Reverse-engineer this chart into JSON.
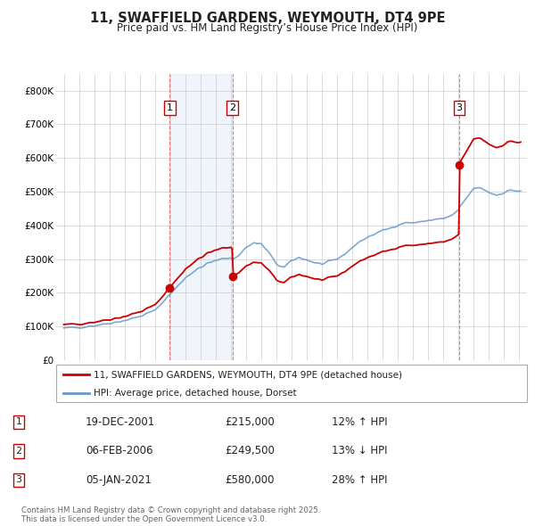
{
  "title": "11, SWAFFIELD GARDENS, WEYMOUTH, DT4 9PE",
  "subtitle": "Price paid vs. HM Land Registry’s House Price Index (HPI)",
  "legend_line1": "11, SWAFFIELD GARDENS, WEYMOUTH, DT4 9PE (detached house)",
  "legend_line2": "HPI: Average price, detached house, Dorset",
  "footnote": "Contains HM Land Registry data © Crown copyright and database right 2025.\nThis data is licensed under the Open Government Licence v3.0.",
  "sale_color": "#cc0000",
  "hpi_color": "#6699cc",
  "shade_color": "#ddeeff",
  "background_color": "#ffffff",
  "plot_bg": "#ffffff",
  "grid_color": "#cccccc",
  "purchases": [
    {
      "label": "1",
      "date": "19-DEC-2001",
      "price": 215000,
      "x": 2001.97,
      "hpi_pct": "12% ↑ HPI"
    },
    {
      "label": "2",
      "date": "06-FEB-2006",
      "price": 249500,
      "x": 2006.1,
      "hpi_pct": "13% ↓ HPI"
    },
    {
      "label": "3",
      "date": "05-JAN-2021",
      "price": 580000,
      "x": 2021.03,
      "hpi_pct": "28% ↑ HPI"
    }
  ],
  "xlim": [
    1994.5,
    2025.5
  ],
  "ylim": [
    0,
    850000
  ],
  "yticks": [
    0,
    100000,
    200000,
    300000,
    400000,
    500000,
    600000,
    700000,
    800000
  ],
  "ytick_labels": [
    "£0",
    "£100K",
    "£200K",
    "£300K",
    "£400K",
    "£500K",
    "£600K",
    "£700K",
    "£800K"
  ],
  "xticks": [
    1995,
    1996,
    1997,
    1998,
    1999,
    2000,
    2001,
    2002,
    2003,
    2004,
    2005,
    2006,
    2007,
    2008,
    2009,
    2010,
    2011,
    2012,
    2013,
    2014,
    2015,
    2016,
    2017,
    2018,
    2019,
    2020,
    2021,
    2022,
    2023,
    2024,
    2025
  ]
}
